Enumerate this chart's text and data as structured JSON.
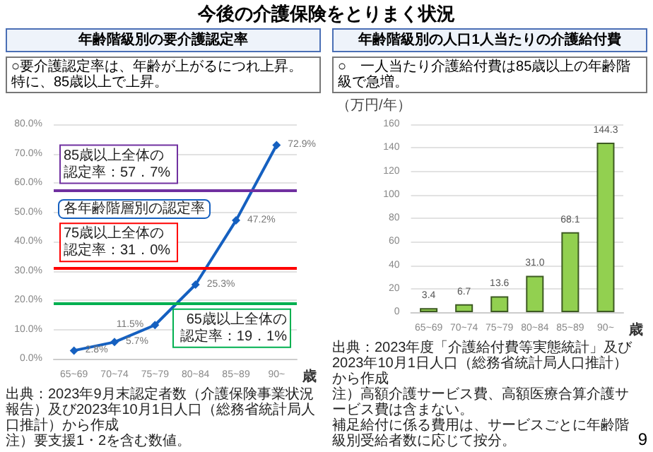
{
  "chart_data": [
    {
      "type": "line",
      "title": "年齢階級別の要介護認定率",
      "subtitle": "○要介護認定率は、年齢が上がるにつれ上昇。特に、85歳以上で上昇。",
      "xlabel": "歳",
      "categories": [
        "65~69",
        "70~74",
        "75~79",
        "80~84",
        "85~89",
        "90~"
      ],
      "series": [
        {
          "name": "各年齢階層別の認定率",
          "color": "#1560c0",
          "values": [
            2.8,
            5.7,
            11.5,
            25.3,
            47.2,
            72.9
          ],
          "value_labels": [
            "2.8%",
            "5.7%",
            "11.5%",
            "25.3%",
            "47.2%",
            "72.9%"
          ]
        }
      ],
      "ylim": [
        0,
        80
      ],
      "yticks": [
        {
          "value": 0,
          "label": "0.0%"
        },
        {
          "value": 10,
          "label": "10.0%"
        },
        {
          "value": 20,
          "label": "20.0%"
        },
        {
          "value": 30,
          "label": "30.0%"
        },
        {
          "value": 40,
          "label": "40.0%"
        },
        {
          "value": 50,
          "label": "50.0%"
        },
        {
          "value": 60,
          "label": "60.0%"
        },
        {
          "value": 70,
          "label": "70.0%"
        },
        {
          "value": 80,
          "label": "80.0%"
        }
      ],
      "grid": "y",
      "marker": "diamond",
      "ref_lines": [
        {
          "axis": "y",
          "value": 57.7,
          "label": "85歳以上全体の認定率：57．7%",
          "color": "#7030a0"
        },
        {
          "axis": "y",
          "value": 31.0,
          "label": "75歳以上全体の認定率：31．0%",
          "color": "#ff0000"
        },
        {
          "axis": "y",
          "value": 19.1,
          "label": "65歳以上全体の認定率：19．1%",
          "color": "#00b050"
        }
      ],
      "annotations": [
        "今後の介護保険をとりまく状況",
        "出典：2023年9月末認定者数（介護保険事業状況報告）及び2023年10月1日人口（総務省統計局人口推計）から作成",
        "注）要支援1・2を含む数値。"
      ]
    },
    {
      "type": "bar",
      "title": "年齢階級別の人口1人当たりの介護給付費",
      "subtitle": "○　一人当たり介護給付費は85歳以上の年齢階級で急増。",
      "ylabel": "（万円/年）",
      "xlabel": "歳",
      "categories": [
        "65~69",
        "70~74",
        "75~79",
        "80~84",
        "85~89",
        "90~"
      ],
      "values": [
        3.4,
        6.7,
        13.6,
        31.0,
        68.1,
        144.3
      ],
      "value_labels": [
        "3.4",
        "6.7",
        "13.6",
        "31.0",
        "68.1",
        "144.3"
      ],
      "color": "#92d050",
      "ylim": [
        0,
        160
      ],
      "yticks": [
        0,
        20,
        40,
        60,
        80,
        100,
        120,
        140,
        160
      ],
      "grid": "y",
      "annotations": [
        "出典：2023年度「介護給付費等実態統計」及び2023年10月1日人口（総務省統計局人口推計）から作成",
        "注）高額介護サービス費、高額医療合算介護サービス費は含まない。",
        "補足給付に係る費用は、サービスごとに年齢階級別受給者数に応じて按分。",
        "9"
      ]
    }
  ]
}
